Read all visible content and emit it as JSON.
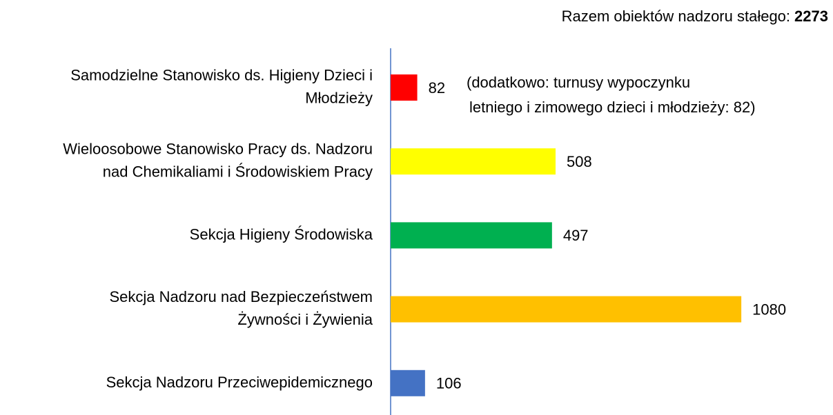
{
  "chart_data": {
    "type": "bar",
    "orientation": "horizontal",
    "title": "Razem obiektów nadzoru stałego:",
    "total": 2273,
    "categories": [
      [
        "Samodzielne Stanowisko ds. Higieny Dzieci i",
        "Młodzieży"
      ],
      [
        "Wieloosobowe Stanowisko Pracy ds. Nadzoru",
        "nad Chemikaliami i Środowiskiem Pracy"
      ],
      [
        "Sekcja Higieny Środowiska"
      ],
      [
        "Sekcja Nadzoru nad Bezpieczeństwem",
        "Żywności i Żywienia"
      ],
      [
        "Sekcja Nadzoru Przeciwepidemicznego"
      ]
    ],
    "values": [
      82,
      508,
      497,
      1080,
      106
    ],
    "colors": [
      "#ff0000",
      "#ffff00",
      "#00b050",
      "#ffc000",
      "#4472c4"
    ],
    "annotation": [
      "(dodatkowo:  turnusy wypoczynku",
      "letniego i zimowego dzieci i młodzieży: 82)"
    ]
  }
}
